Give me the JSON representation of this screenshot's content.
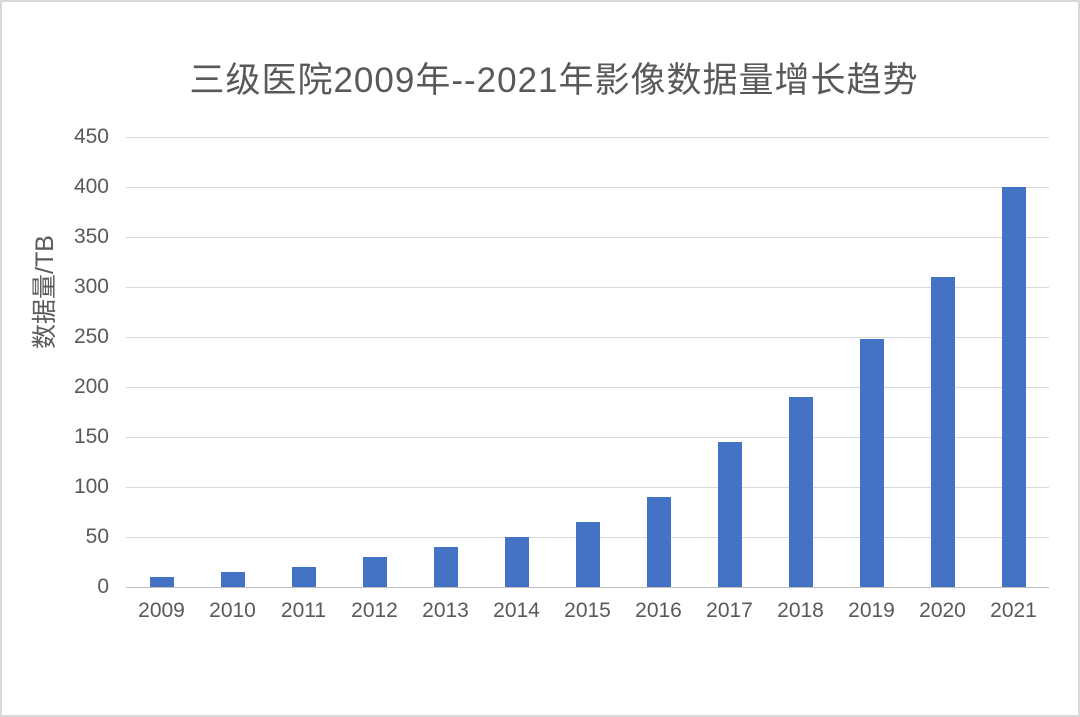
{
  "page": {
    "background": "#ffffff",
    "frame_border_color": "#d9d9d9"
  },
  "chart_data": {
    "type": "bar",
    "title": "三级医院2009年--2021年影像数据量增长趋势",
    "categories": [
      "2009",
      "2010",
      "2011",
      "2012",
      "2013",
      "2014",
      "2015",
      "2016",
      "2017",
      "2018",
      "2019",
      "2020",
      "2021"
    ],
    "values": [
      10,
      15,
      20,
      30,
      40,
      50,
      65,
      90,
      145,
      190,
      248,
      310,
      400
    ],
    "xlabel": "",
    "ylabel": "数据量/TB",
    "ylim": [
      0,
      450
    ],
    "ytick_step": 50,
    "ytick_labels": [
      "0",
      "50",
      "100",
      "150",
      "200",
      "250",
      "300",
      "350",
      "400",
      "450"
    ],
    "grid": "horizontal",
    "legend_position": "none",
    "bar_color": "#4472C4",
    "text_color": "#595959",
    "gridline_color": "#d9d9d9",
    "axisline_color": "#bfbfbf"
  }
}
